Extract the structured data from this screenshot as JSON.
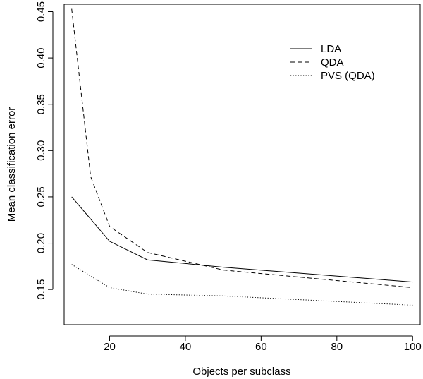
{
  "chart_data": {
    "type": "line",
    "title": "",
    "xlabel": "Objects per subclass",
    "ylabel": "Mean classification error",
    "xlim": [
      8,
      102
    ],
    "ylim": [
      0.112,
      0.458
    ],
    "xticks": [
      20,
      40,
      60,
      80,
      100
    ],
    "xtick_labels": [
      "20",
      "40",
      "60",
      "80",
      "100"
    ],
    "yticks": [
      0.15,
      0.2,
      0.25,
      0.3,
      0.35,
      0.4,
      0.45
    ],
    "ytick_labels": [
      "0.15",
      "0.20",
      "0.25",
      "0.30",
      "0.35",
      "0.40",
      "0.45"
    ],
    "grid": false,
    "legend_position": "top-right",
    "series": [
      {
        "name": "LDA",
        "linestyle": "solid",
        "x": [
          10,
          20,
          30,
          50,
          100
        ],
        "y": [
          0.25,
          0.202,
          0.182,
          0.174,
          0.158
        ]
      },
      {
        "name": "QDA",
        "linestyle": "dashed",
        "x": [
          10,
          15,
          20,
          30,
          50,
          100
        ],
        "y": [
          0.453,
          0.272,
          0.218,
          0.19,
          0.171,
          0.152
        ]
      },
      {
        "name": "PVS (QDA)",
        "linestyle": "dotted",
        "x": [
          10,
          20,
          30,
          50,
          100
        ],
        "y": [
          0.177,
          0.152,
          0.145,
          0.143,
          0.133
        ]
      }
    ]
  }
}
